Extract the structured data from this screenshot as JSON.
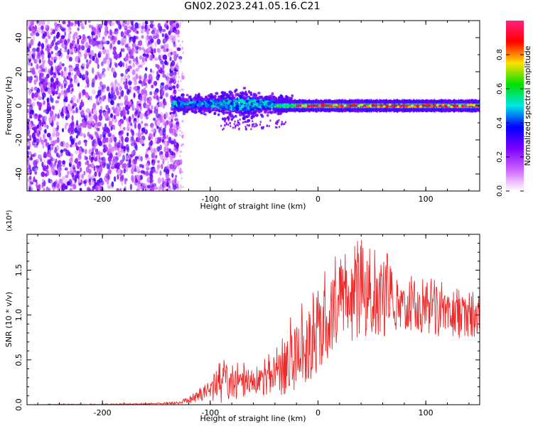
{
  "figure": {
    "title": "GN02.2023.241.05.16.C21"
  },
  "colors": {
    "low": "#cf63ff",
    "mid_purple": "#7a00ff",
    "blue": "#0000ff",
    "cyan": "#00e6e6",
    "green": "#00e000",
    "yellow": "#ffe100",
    "red": "#ff0000",
    "magenta": "#ff1f7f",
    "snr_line": "#ee2a2a"
  },
  "chart_data": [
    {
      "type": "heatmap",
      "xlabel": "Height of straight line (km)",
      "ylabel": "Frequency (Hz)",
      "xlim": [
        -270,
        150
      ],
      "ylim": [
        -50,
        50
      ],
      "xticks": [
        -200,
        -100,
        0,
        100
      ],
      "yticks": [
        -40,
        -20,
        0,
        20,
        40
      ],
      "colorbar": {
        "label": "Normalized spectral amplitude",
        "range": [
          0.0,
          1.0
        ],
        "ticks": [
          "0.0",
          "0.2",
          "0.4",
          "0.6",
          "0.8"
        ],
        "stops": [
          "#ffffff",
          "#cf63ff",
          "#7a00ff",
          "#0000ff",
          "#00e6e6",
          "#00e000",
          "#ffe100",
          "#ff0000",
          "#ff1f7f"
        ]
      },
      "features": [
        {
          "region": "broadband noise",
          "x_range": [
            -270,
            -135
          ],
          "y_range": [
            -50,
            50
          ],
          "amplitude": "0.0-0.2"
        },
        {
          "region": "narrowband emergence",
          "x_range": [
            -135,
            -25
          ],
          "y_range": [
            -8,
            10
          ],
          "amplitude": "0.2-0.5"
        },
        {
          "region": "stable 0 Hz line",
          "x_range": [
            -25,
            150
          ],
          "y_range": [
            -3,
            3
          ],
          "amplitude": "0.8-1.0"
        }
      ]
    },
    {
      "type": "line",
      "xlabel": "Height of straight line (km)",
      "ylabel": "SNR (10 * v/v)",
      "y_multiplier": "(x10⁴)",
      "xlim": [
        -270,
        150
      ],
      "ylim": [
        0.0,
        1.9
      ],
      "xticks": [
        -200,
        -100,
        0,
        100
      ],
      "yticks": [
        "0.0",
        "0.5",
        "1.0",
        "1.5"
      ],
      "series": [
        {
          "x": [
            -270,
            -250,
            -200,
            -150,
            -130,
            -120,
            -110,
            -100,
            -90,
            -80,
            -70,
            -60,
            -50,
            -40,
            -30,
            -20,
            -10,
            0,
            10,
            20,
            30,
            40,
            50,
            60,
            70,
            80,
            90,
            100,
            110,
            120,
            130,
            140,
            150
          ],
          "y": [
            0.0,
            0.0,
            0.0,
            0.01,
            0.02,
            0.04,
            0.1,
            0.15,
            0.2,
            0.22,
            0.24,
            0.24,
            0.26,
            0.32,
            0.4,
            0.52,
            0.62,
            0.78,
            0.92,
            1.05,
            1.1,
            1.16,
            1.15,
            1.12,
            1.1,
            1.08,
            1.04,
            1.02,
            1.0,
            0.98,
            0.96,
            0.95,
            0.92
          ],
          "envelope": [
            0.0,
            0.01,
            0.01,
            0.02,
            0.04,
            0.09,
            0.2,
            0.34,
            0.5,
            0.5,
            0.5,
            0.42,
            0.52,
            0.68,
            0.9,
            1.1,
            1.3,
            1.5,
            1.6,
            1.7,
            1.76,
            1.9,
            1.75,
            1.7,
            1.68,
            1.5,
            1.45,
            1.4,
            1.42,
            1.35,
            1.34,
            1.3,
            1.3
          ]
        }
      ]
    }
  ]
}
